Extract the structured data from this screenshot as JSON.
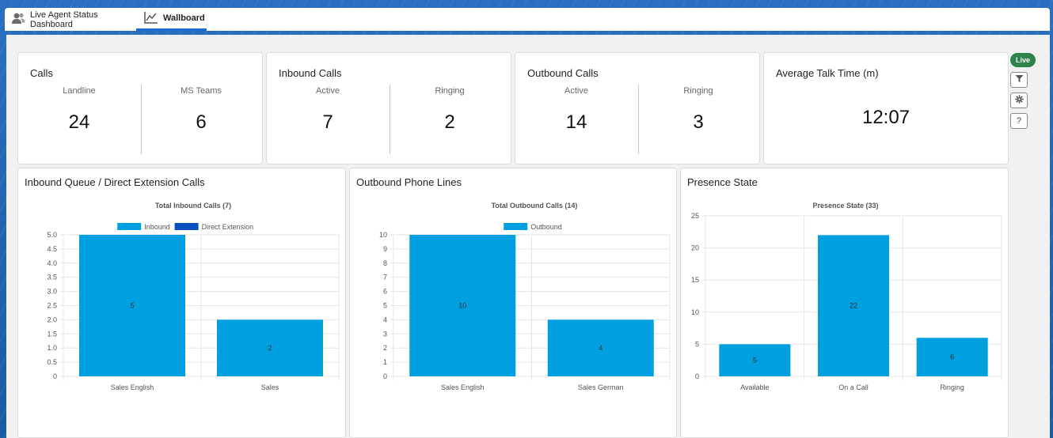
{
  "tabs": [
    {
      "label": "Live Agent Status Dashboard",
      "icon": "users-icon"
    },
    {
      "label": "Wallboard",
      "icon": "line-chart-icon"
    }
  ],
  "side_controls": {
    "live_label": "Live",
    "help_label": "?"
  },
  "cards": {
    "calls": {
      "title": "Calls",
      "stats": [
        {
          "label": "Landline",
          "value": "24"
        },
        {
          "label": "MS Teams",
          "value": "6"
        }
      ]
    },
    "inbound": {
      "title": "Inbound Calls",
      "stats": [
        {
          "label": "Active",
          "value": "7"
        },
        {
          "label": "Ringing",
          "value": "2"
        }
      ]
    },
    "outbound": {
      "title": "Outbound Calls",
      "stats": [
        {
          "label": "Active",
          "value": "14"
        },
        {
          "label": "Ringing",
          "value": "3"
        }
      ]
    },
    "talk_time": {
      "title": "Average Talk Time (m)",
      "value": "12:07"
    }
  },
  "chart_data": [
    {
      "type": "bar",
      "panel_title": "Inbound Queue / Direct Extension Calls",
      "title": "Total Inbound Calls (7)",
      "categories": [
        "Sales English",
        "Sales"
      ],
      "series": [
        {
          "name": "Inbound",
          "values": [
            5,
            2
          ],
          "color": "#009fdf"
        },
        {
          "name": "Direct Extension",
          "values": [
            0,
            0
          ],
          "color": "#0b4fbf"
        }
      ],
      "ylim": [
        0,
        5
      ],
      "yticks": [
        "0",
        "0.5",
        "1.0",
        "1.5",
        "2.0",
        "2.5",
        "3.0",
        "3.5",
        "4.0",
        "4.5",
        "5.0"
      ],
      "grid": true,
      "legend": "top"
    },
    {
      "type": "bar",
      "panel_title": "Outbound Phone Lines",
      "title": "Total Outbound Calls (14)",
      "categories": [
        "Sales English",
        "Sales German"
      ],
      "series": [
        {
          "name": "Outbound",
          "values": [
            10,
            4
          ],
          "color": "#009fdf"
        }
      ],
      "ylim": [
        0,
        10
      ],
      "yticks": [
        "0",
        "1",
        "2",
        "3",
        "4",
        "5",
        "6",
        "7",
        "8",
        "9",
        "10"
      ],
      "grid": true,
      "legend": "top"
    },
    {
      "type": "bar",
      "panel_title": "Presence State",
      "title": "Presence State (33)",
      "categories": [
        "Available",
        "On a Call",
        "Ringing"
      ],
      "series": [
        {
          "values": [
            5,
            22,
            6
          ],
          "color": "#009fdf"
        }
      ],
      "ylim": [
        0,
        25
      ],
      "yticks": [
        "0",
        "5",
        "10",
        "15",
        "20",
        "25"
      ],
      "grid": true,
      "legend": "none"
    }
  ]
}
